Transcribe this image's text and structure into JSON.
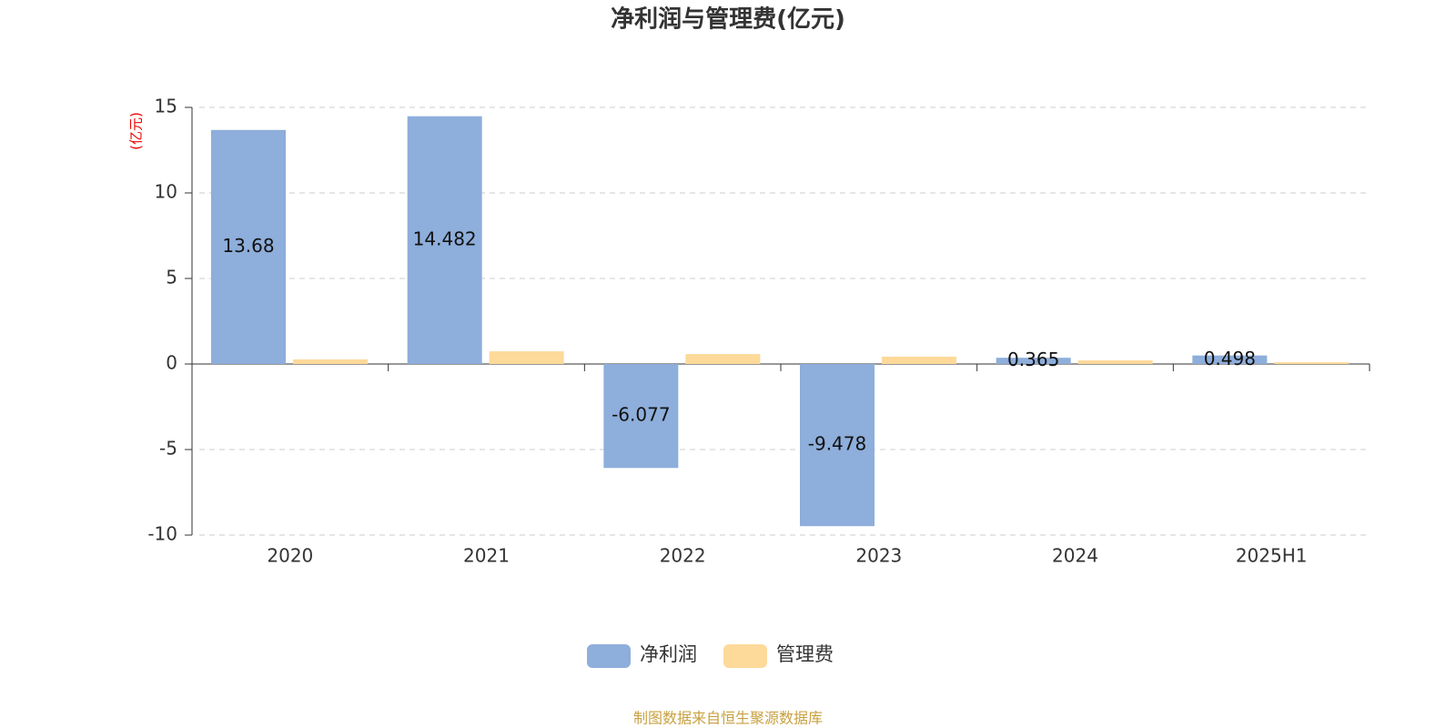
{
  "chart_data": {
    "type": "bar",
    "title": "净利润与管理费(亿元)",
    "y_unit": "(亿元)",
    "categories": [
      "2020",
      "2021",
      "2022",
      "2023",
      "2024",
      "2025H1"
    ],
    "series": [
      {
        "name": "净利润",
        "color": "#8eaedb",
        "values": [
          13.68,
          14.482,
          -6.077,
          -9.478,
          0.365,
          0.498
        ],
        "labels": true
      },
      {
        "name": "管理费",
        "color": "#fdd99a",
        "values": [
          0.27,
          0.74,
          0.58,
          0.43,
          0.21,
          0.1
        ],
        "labels": false
      }
    ],
    "ylim": [
      -10,
      15
    ],
    "yticks": [
      -10,
      -5,
      0,
      5,
      10,
      15
    ],
    "grid": true,
    "source": "制图数据来自恒生聚源数据库"
  }
}
